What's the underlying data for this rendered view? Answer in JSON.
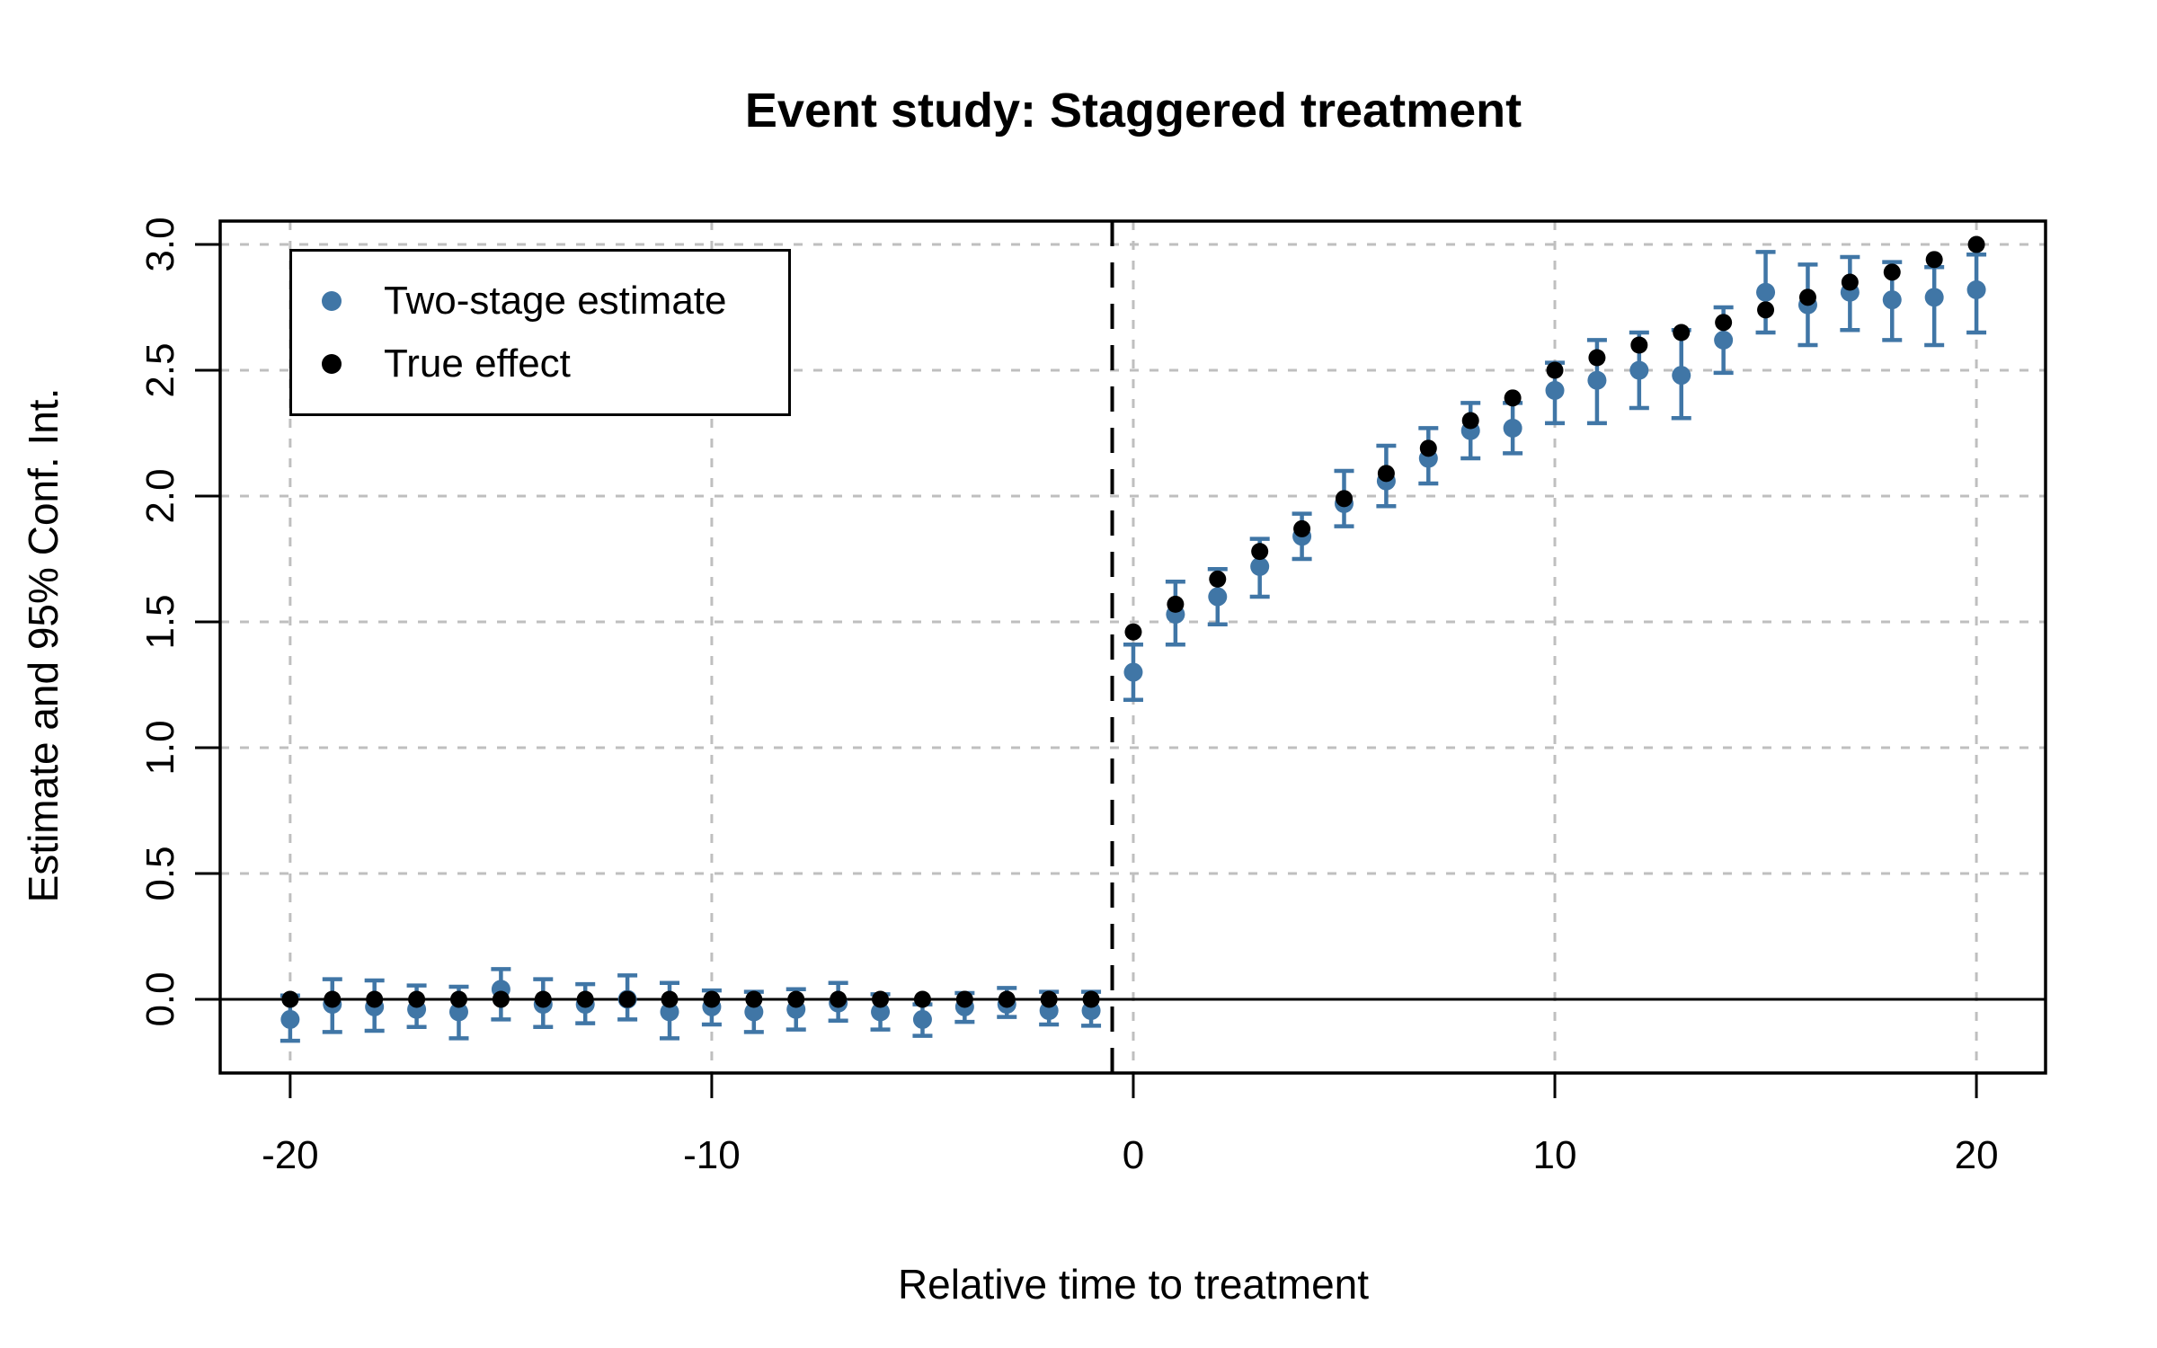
{
  "title": "Event study: Staggered treatment",
  "x_axis_label": "Relative time to treatment",
  "y_axis_label": "Estimate and 95% Conf. Int.",
  "legend": {
    "items": [
      {
        "label": "Two-stage estimate",
        "color": "#4076A6"
      },
      {
        "label": "True effect",
        "color": "#000000"
      }
    ]
  },
  "colors": {
    "estimate_blue": "#4076A6",
    "true_black": "#000000",
    "grid_gray": "#BFBFBF",
    "background": "#FFFFFF"
  },
  "chart_data": {
    "type": "scatter",
    "title": "Event study: Staggered treatment",
    "xlabel": "Relative time to treatment",
    "ylabel": "Estimate and 95% Conf. Int.",
    "x_ticks": [
      -20,
      -10,
      0,
      10,
      20
    ],
    "y_ticks": [
      0.0,
      0.5,
      1.0,
      1.5,
      2.0,
      2.5,
      3.0
    ],
    "y_tick_labels": [
      "0.0",
      "0.5",
      "1.0",
      "1.5",
      "2.0",
      "2.5",
      "3.0"
    ],
    "x_tick_labels": [
      "-20",
      "-10",
      "0",
      "10",
      "20"
    ],
    "xlim": [
      -21.66,
      21.64
    ],
    "ylim": [
      -0.293,
      3.093
    ],
    "grid": "dashed-gray-at-ticks",
    "legend_position": "top-left",
    "reference_lines": {
      "horizontal_solid_y": 0,
      "vertical_dashed_x": -0.5
    },
    "x": [
      -20,
      -19,
      -18,
      -17,
      -16,
      -15,
      -14,
      -13,
      -12,
      -11,
      -10,
      -9,
      -8,
      -7,
      -6,
      -5,
      -4,
      -3,
      -2,
      -1,
      0,
      1,
      2,
      3,
      4,
      5,
      6,
      7,
      8,
      9,
      10,
      11,
      12,
      13,
      14,
      15,
      16,
      17,
      18,
      19,
      20
    ],
    "series": [
      {
        "name": "Two-stage estimate",
        "color": "#4076A6",
        "marker": "circle-with-error-bars",
        "values": [
          -0.08,
          -0.02,
          -0.03,
          -0.04,
          -0.05,
          0.04,
          -0.02,
          -0.02,
          0.0,
          -0.05,
          -0.03,
          -0.05,
          -0.04,
          -0.015,
          -0.05,
          -0.08,
          -0.03,
          -0.02,
          -0.045,
          -0.045,
          1.3,
          1.53,
          1.6,
          1.72,
          1.84,
          1.97,
          2.06,
          2.15,
          2.26,
          2.27,
          2.42,
          2.46,
          2.5,
          2.48,
          2.62,
          2.81,
          2.76,
          2.81,
          2.78,
          2.79,
          2.82
        ],
        "ci_low": [
          -0.165,
          -0.13,
          -0.125,
          -0.11,
          -0.155,
          -0.08,
          -0.11,
          -0.095,
          -0.08,
          -0.155,
          -0.1,
          -0.13,
          -0.12,
          -0.085,
          -0.12,
          -0.145,
          -0.09,
          -0.07,
          -0.1,
          -0.105,
          1.19,
          1.41,
          1.49,
          1.6,
          1.75,
          1.88,
          1.96,
          2.05,
          2.15,
          2.17,
          2.29,
          2.29,
          2.35,
          2.31,
          2.49,
          2.65,
          2.6,
          2.66,
          2.62,
          2.6,
          2.65
        ],
        "ci_high": [
          0.015,
          0.08,
          0.075,
          0.055,
          0.05,
          0.12,
          0.08,
          0.06,
          0.095,
          0.065,
          0.035,
          0.03,
          0.04,
          0.065,
          0.02,
          -0.02,
          0.025,
          0.045,
          0.03,
          0.03,
          1.41,
          1.66,
          1.71,
          1.83,
          1.93,
          2.1,
          2.2,
          2.27,
          2.37,
          2.37,
          2.53,
          2.62,
          2.65,
          2.66,
          2.75,
          2.97,
          2.92,
          2.95,
          2.93,
          2.91,
          2.96
        ]
      },
      {
        "name": "True effect",
        "color": "#000000",
        "marker": "circle",
        "values": [
          0,
          0,
          0,
          0,
          0,
          0,
          0,
          0,
          0,
          0,
          0,
          0,
          0,
          0,
          0,
          0,
          0,
          0,
          0,
          0,
          1.46,
          1.57,
          1.67,
          1.78,
          1.87,
          1.99,
          2.09,
          2.19,
          2.3,
          2.39,
          2.5,
          2.55,
          2.6,
          2.65,
          2.69,
          2.74,
          2.79,
          2.85,
          2.89,
          2.94,
          3.0
        ]
      }
    ]
  }
}
